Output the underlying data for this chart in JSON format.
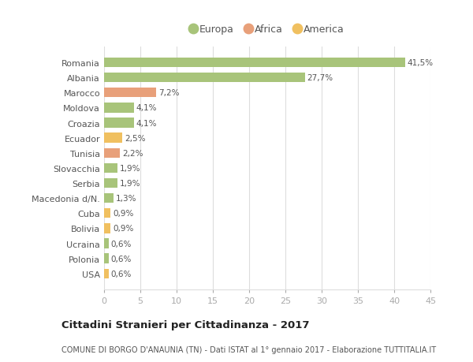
{
  "countries": [
    "Romania",
    "Albania",
    "Marocco",
    "Moldova",
    "Croazia",
    "Ecuador",
    "Tunisia",
    "Slovacchia",
    "Serbia",
    "Macedonia d/N.",
    "Cuba",
    "Bolivia",
    "Ucraina",
    "Polonia",
    "USA"
  ],
  "values": [
    41.5,
    27.7,
    7.2,
    4.1,
    4.1,
    2.5,
    2.2,
    1.9,
    1.9,
    1.3,
    0.9,
    0.9,
    0.6,
    0.6,
    0.6
  ],
  "labels": [
    "41,5%",
    "27,7%",
    "7,2%",
    "4,1%",
    "4,1%",
    "2,5%",
    "2,2%",
    "1,9%",
    "1,9%",
    "1,3%",
    "0,9%",
    "0,9%",
    "0,6%",
    "0,6%",
    "0,6%"
  ],
  "continents": [
    "Europa",
    "Europa",
    "Africa",
    "Europa",
    "Europa",
    "America",
    "Africa",
    "Europa",
    "Europa",
    "Europa",
    "America",
    "America",
    "Europa",
    "Europa",
    "America"
  ],
  "colors": {
    "Europa": "#a8c47a",
    "Africa": "#e8a07a",
    "America": "#f0c060"
  },
  "xlim": [
    0,
    45
  ],
  "xticks": [
    0,
    5,
    10,
    15,
    20,
    25,
    30,
    35,
    40,
    45
  ],
  "title": "Cittadini Stranieri per Cittadinanza - 2017",
  "subtitle": "COMUNE DI BORGO D'ANAUNIA (TN) - Dati ISTAT al 1° gennaio 2017 - Elaborazione TUTTITALIA.IT",
  "background_color": "#ffffff",
  "grid_color": "#dddddd",
  "bar_height": 0.65
}
